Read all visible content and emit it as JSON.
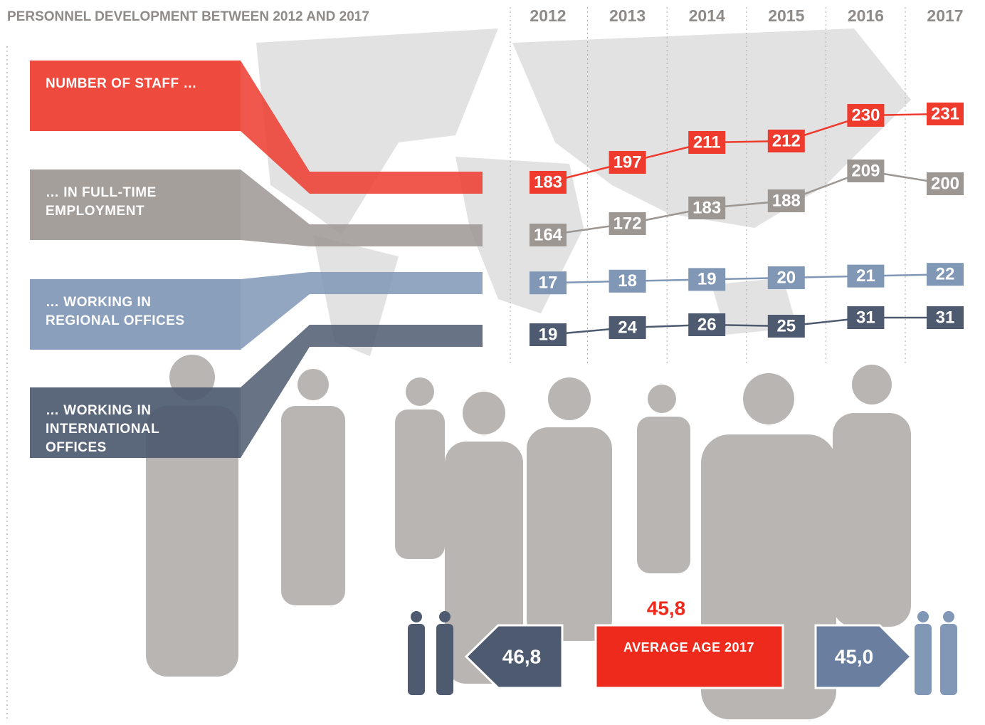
{
  "chart_data": {
    "type": "line",
    "title": "PERSONNEL DEVELOPMENT BETWEEN 2012 AND 2017",
    "categories": [
      "2012",
      "2013",
      "2014",
      "2015",
      "2016",
      "2017"
    ],
    "series": [
      {
        "name": "NUMBER OF STAFF …",
        "color": "#ee3b2e",
        "values": [
          183,
          197,
          211,
          212,
          230,
          231
        ]
      },
      {
        "name": "… IN FULL-TIME EMPLOYMENT",
        "color": "#9c9793",
        "values": [
          164,
          172,
          183,
          188,
          209,
          200
        ]
      },
      {
        "name": "… WORKING IN REGIONAL OFFICES",
        "color": "#8097b6",
        "values": [
          17,
          18,
          19,
          20,
          21,
          22
        ]
      },
      {
        "name": "… WORKING IN INTERNATIONAL OFFICES",
        "color": "#4d5a70",
        "values": [
          19,
          24,
          26,
          25,
          31,
          31
        ]
      }
    ]
  },
  "average_age": {
    "label": "AVERAGE AGE 2017",
    "values": [
      45.8,
      46.8,
      45.0
    ],
    "value_labels": [
      "45,8",
      "46,8",
      "45,0"
    ]
  }
}
